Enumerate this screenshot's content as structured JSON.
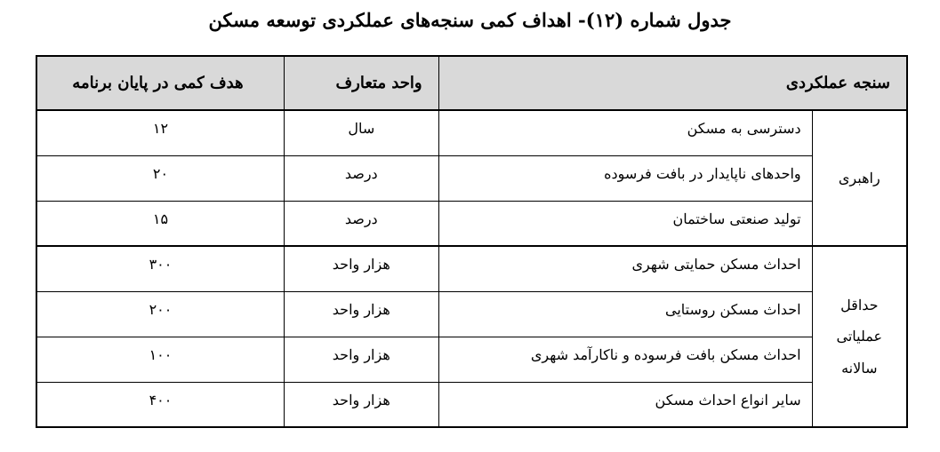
{
  "title": "جدول شماره (۱۲)- اهداف کمی سنجه‌های عملکردی توسعه مسکن",
  "header": {
    "measure": "سنجه عملکردی",
    "unit": "واحد متعارف",
    "target": "هدف کمی در پایان برنامه"
  },
  "groups": [
    {
      "category": "راهبری",
      "rows": [
        {
          "measure": "دسترسی به مسکن",
          "unit": "سال",
          "target": "۱۲"
        },
        {
          "measure": "واحدهای ناپایدار در بافت فرسوده",
          "unit": "درصد",
          "target": "۲۰"
        },
        {
          "measure": "تولید صنعتی ساختمان",
          "unit": "درصد",
          "target": "۱۵"
        }
      ]
    },
    {
      "category": "حداقل عملیاتی سالانه",
      "rows": [
        {
          "measure": "احداث مسکن حمایتی شهری",
          "unit": "هزار واحد",
          "target": "۳۰۰"
        },
        {
          "measure": "احداث مسکن روستایی",
          "unit": "هزار واحد",
          "target": "۲۰۰"
        },
        {
          "measure": "احداث مسکن بافت فرسوده و ناکارآمد شهری",
          "unit": "هزار واحد",
          "target": "۱۰۰"
        },
        {
          "measure": "سایر انواع احداث مسکن",
          "unit": "هزار واحد",
          "target": "۴۰۰"
        }
      ]
    }
  ]
}
